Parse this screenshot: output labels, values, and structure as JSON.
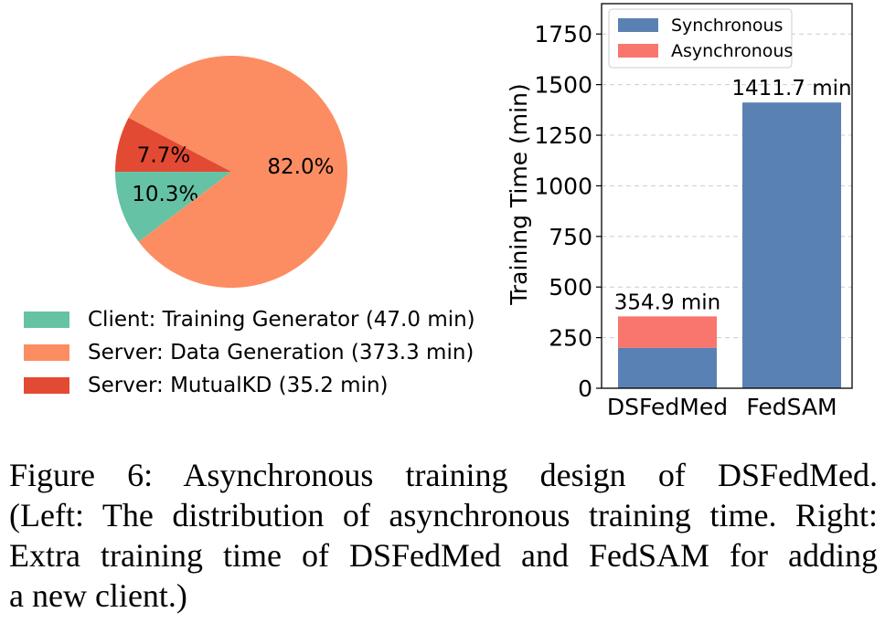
{
  "chart_data": [
    {
      "type": "pie",
      "slices": [
        {
          "label": "Client: Training Generator (47.0 min)",
          "value": 10.3,
          "value_label": "10.3%",
          "color": "#66c2a5"
        },
        {
          "label": "Server: Data Generation (373.3 min)",
          "value": 82.0,
          "value_label": "82.0%",
          "color": "#fc8d62"
        },
        {
          "label": "Server: MutualKD (35.2 min)",
          "value": 7.7,
          "value_label": "7.7%",
          "color": "#e34a33"
        }
      ],
      "legend_position": "bottom-left"
    },
    {
      "type": "bar",
      "stacked": true,
      "categories": [
        "DSFedMed",
        "FedSAM"
      ],
      "series": [
        {
          "name": "Synchronous",
          "values": [
            200,
            1411.7
          ],
          "color": "#5a81b3"
        },
        {
          "name": "Asynchronous",
          "values": [
            154.9,
            0
          ],
          "color": "#f8766d"
        }
      ],
      "totals": [
        354.9,
        1411.7
      ],
      "total_labels": [
        "354.9 min",
        "1411.7 min"
      ],
      "ylabel": "Training Time (min)",
      "ylim": [
        0,
        1900
      ],
      "yticks": [
        0,
        250,
        500,
        750,
        1000,
        1250,
        1500,
        1750
      ],
      "grid": "y-dashed",
      "legend_position": "top-left"
    }
  ],
  "caption": {
    "lines": [
      "Figure 6: Asynchronous training design of DSFedMed.",
      "(Left: The distribution of asynchronous training time. Right:",
      "Extra training time of DSFedMed and FedSAM for adding",
      "a new client.)"
    ]
  }
}
